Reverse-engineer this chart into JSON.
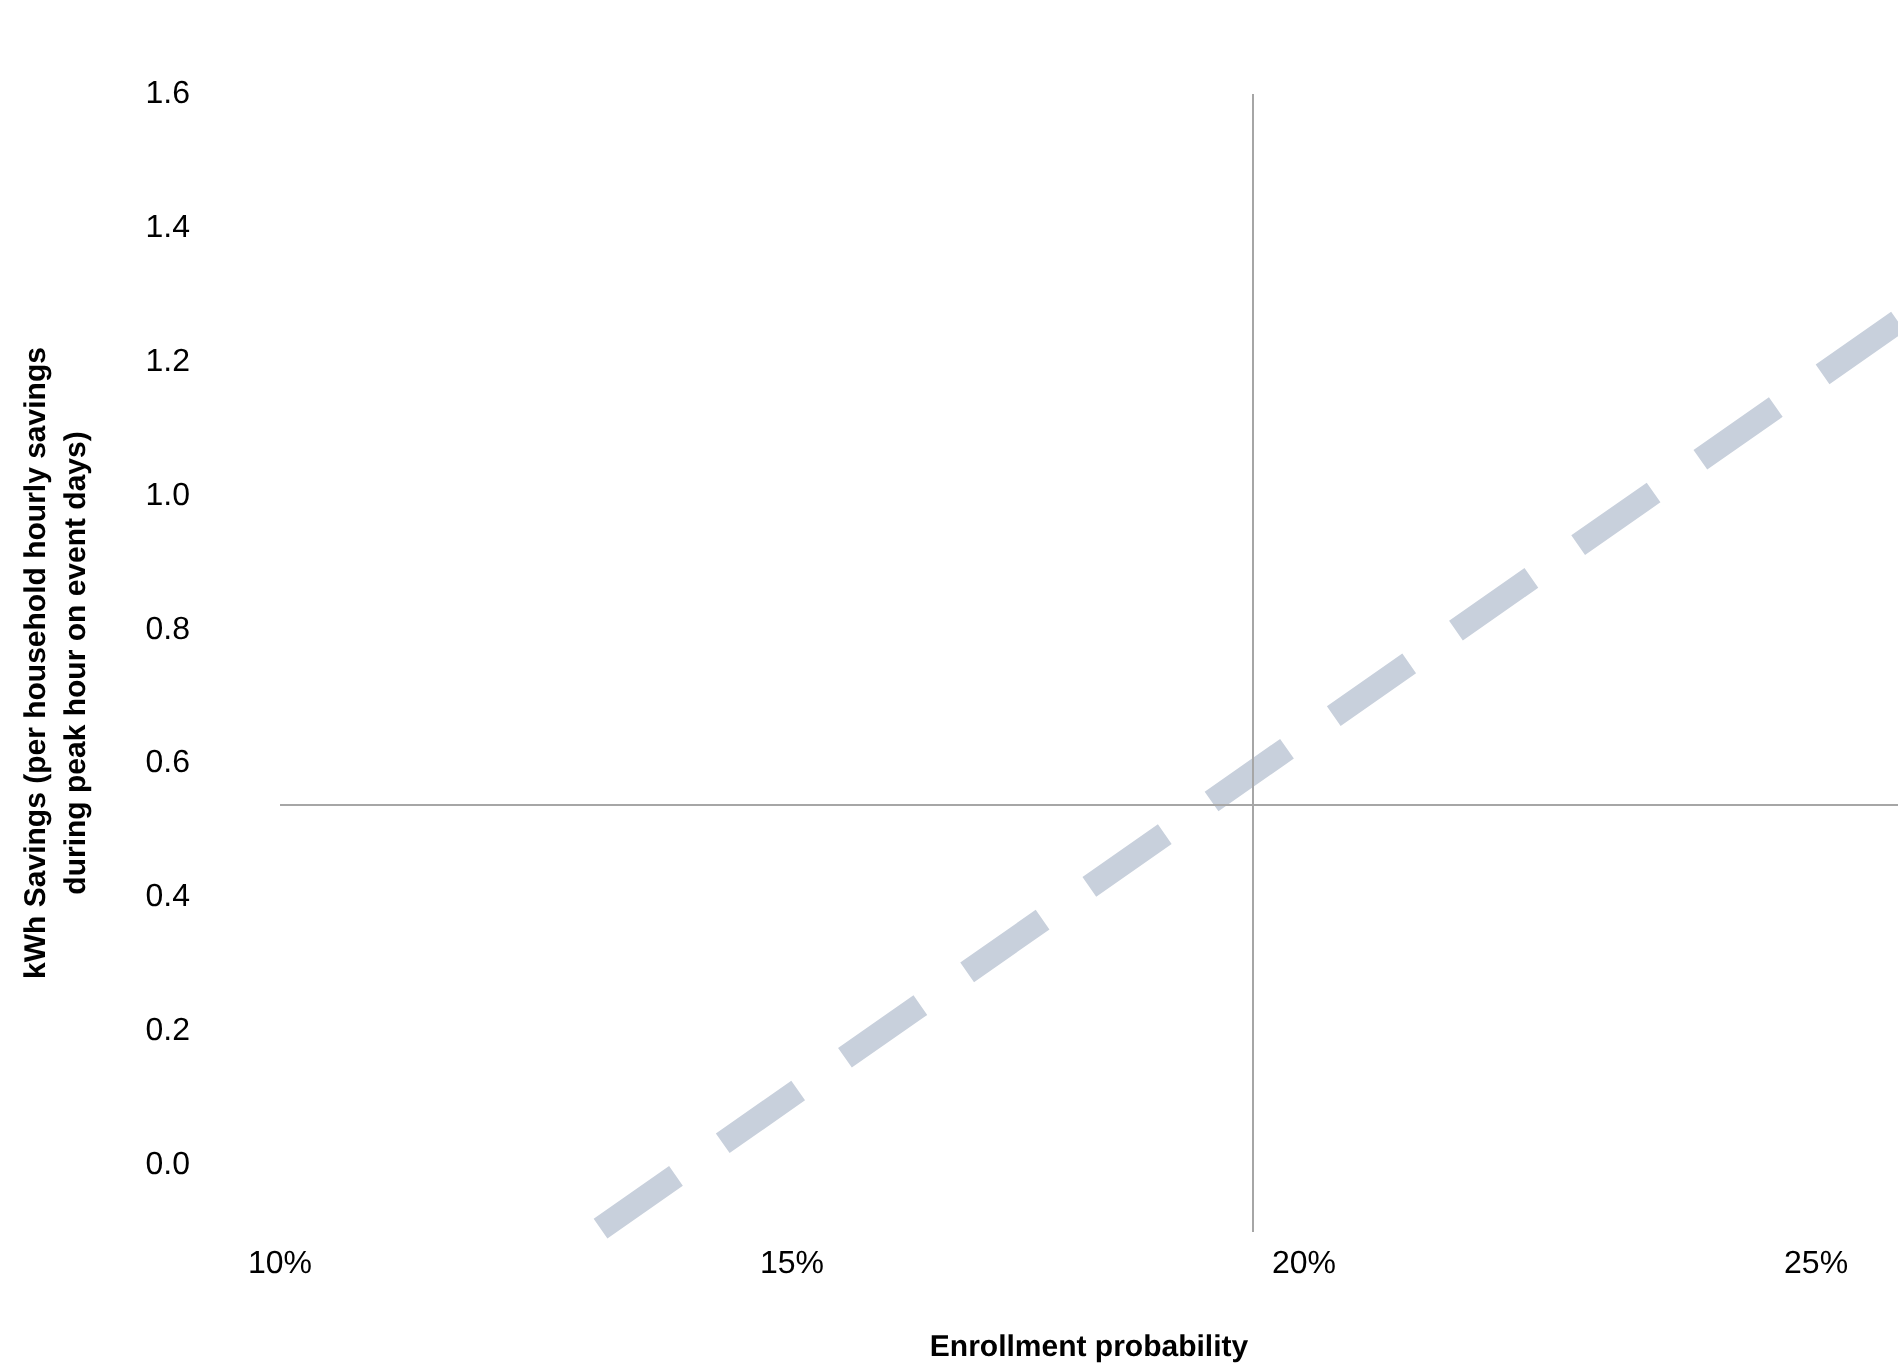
{
  "chart_data": {
    "type": "line",
    "xlabel": "Enrollment probability",
    "ylabel": "kWh Savings (per household hourly savings during peak hour on event days)",
    "x": [
      13.13,
      25.8
    ],
    "series": [
      {
        "color": "#c8d0dc",
        "values": [
          -0.095,
          1.26
        ]
      }
    ],
    "xlim": [
      10,
      25.8
    ],
    "xticks": [
      {
        "value": 10,
        "label": "10%"
      },
      {
        "value": 15,
        "label": "15%"
      },
      {
        "value": 20,
        "label": "20%"
      },
      {
        "value": 25,
        "label": "25%"
      }
    ],
    "ylim": [
      -0.1,
      1.6
    ],
    "yticks": [
      {
        "value": 0,
        "label": "0.0"
      },
      {
        "value": 0.2,
        "label": "0.2"
      },
      {
        "value": 0.4,
        "label": "0.4"
      },
      {
        "value": 0.6,
        "label": "0.6"
      },
      {
        "value": 0.8,
        "label": "0.8"
      },
      {
        "value": 1,
        "label": "1.0"
      },
      {
        "value": 1.2,
        "label": "1.2"
      },
      {
        "value": 1.4,
        "label": "1.4"
      },
      {
        "value": 1.6,
        "label": "1.6"
      }
    ],
    "ref_lines": [
      {
        "axis": "x",
        "value": 19.5,
        "color": "#a6a6a6"
      },
      {
        "axis": "y",
        "value": 0.54,
        "color": "#a6a6a6"
      }
    ],
    "grid": false,
    "marker": "none",
    "line_style": "dashed"
  }
}
